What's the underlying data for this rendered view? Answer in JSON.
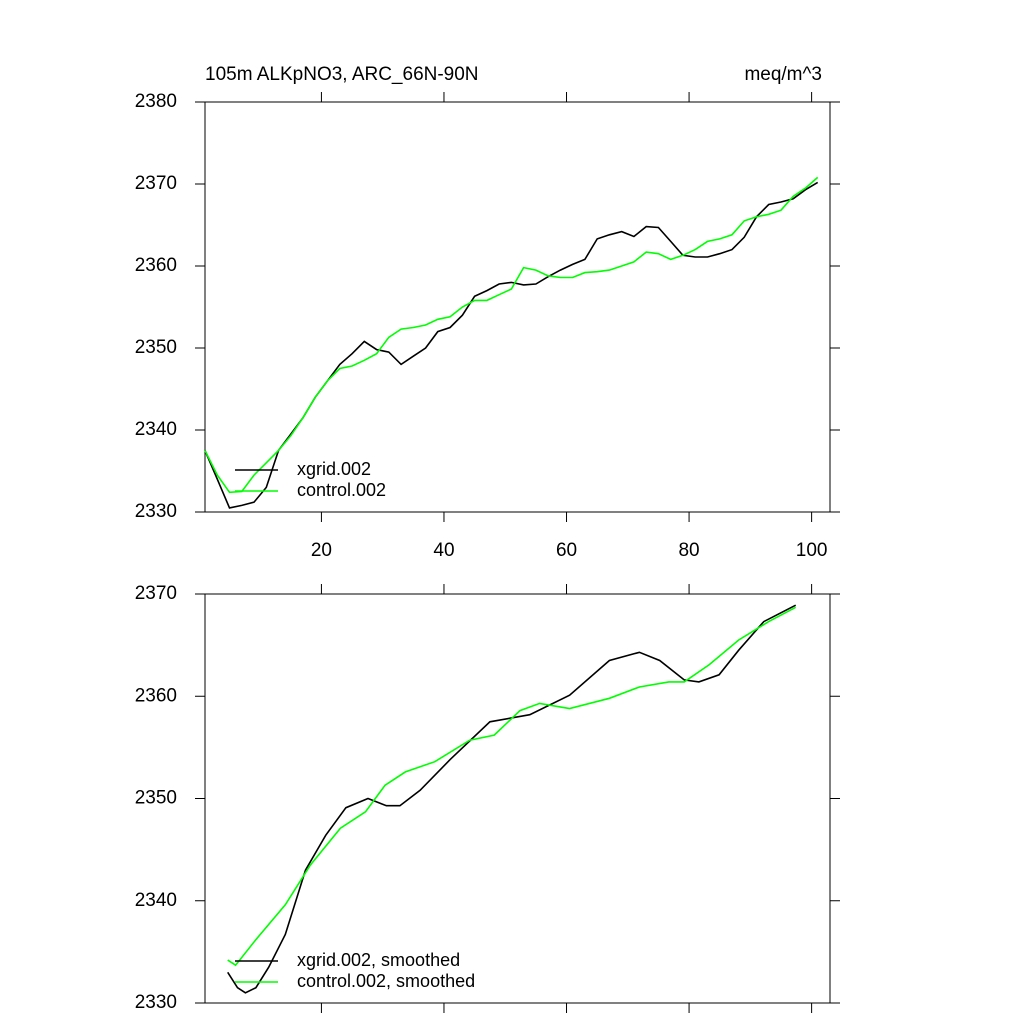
{
  "chart_data": [
    {
      "type": "line",
      "title": "105m ALKpNO3, ARC_66N-90N",
      "units": "meq/m^3",
      "xlim": [
        1,
        103
      ],
      "xticks": [
        20,
        40,
        60,
        80,
        100
      ],
      "ylim": [
        2330,
        2380
      ],
      "yticks": [
        2330,
        2340,
        2350,
        2360,
        2370,
        2380
      ],
      "legend": "lower left",
      "x": [
        1,
        3,
        5,
        7,
        9,
        11,
        13,
        15,
        17,
        19,
        21,
        23,
        25,
        27,
        29,
        31,
        33,
        35,
        37,
        39,
        41,
        43,
        45,
        47,
        49,
        51,
        53,
        55,
        57,
        59,
        61,
        63,
        65,
        67,
        69,
        71,
        73,
        75,
        77,
        79,
        81,
        83,
        85,
        87,
        89,
        91,
        93,
        95,
        97,
        99,
        101
      ],
      "series": [
        {
          "name": "xgrid.002",
          "color": "#000000",
          "values": [
            2337.5,
            2334,
            2330.5,
            2330.8,
            2331.2,
            2333,
            2337.5,
            2339.5,
            2341.5,
            2344,
            2346,
            2348,
            2349.3,
            2350.8,
            2349.8,
            2349.5,
            2348,
            2349,
            2350,
            2352,
            2352.5,
            2354,
            2356.3,
            2357,
            2357.8,
            2358,
            2357.7,
            2357.8,
            2358.7,
            2359.5,
            2360.2,
            2360.8,
            2363.3,
            2363.8,
            2364.2,
            2363.6,
            2364.8,
            2364.7,
            2363,
            2361.3,
            2361.1,
            2361.1,
            2361.5,
            2362,
            2363.5,
            2366,
            2367.5,
            2367.8,
            2368.2,
            2369.3,
            2370.2
          ]
        },
        {
          "name": "control.002",
          "color": "#00ff00",
          "values": [
            2337.5,
            2334.5,
            2332.4,
            2332.5,
            2334.5,
            2336,
            2337.5,
            2339.3,
            2341.5,
            2344,
            2346,
            2347.5,
            2347.8,
            2348.5,
            2349.3,
            2351.3,
            2352.3,
            2352.5,
            2352.8,
            2353.5,
            2353.8,
            2355,
            2355.8,
            2355.8,
            2356.5,
            2357.2,
            2359.8,
            2359.5,
            2358.8,
            2358.6,
            2358.6,
            2359.2,
            2359.3,
            2359.5,
            2360,
            2360.5,
            2361.7,
            2361.5,
            2360.8,
            2361.3,
            2362,
            2363,
            2363.3,
            2363.8,
            2365.5,
            2366,
            2366.3,
            2366.8,
            2368.5,
            2369.5,
            2370.8
          ]
        }
      ]
    },
    {
      "type": "line",
      "xlim": [
        1,
        103
      ],
      "ylim": [
        2330,
        2370
      ],
      "yticks": [
        2330,
        2340,
        2350,
        2360,
        2370
      ],
      "legend": "lower left",
      "series": [
        {
          "name": "xgrid.002, smoothed",
          "color": "#000000",
          "x": [
            4.7,
            6.3,
            7.6,
            9.3,
            11.4,
            14.1,
            17.4,
            20.7,
            24,
            27.6,
            30.6,
            32.8,
            36.1,
            41,
            47.5,
            54,
            60.5,
            67,
            71.9,
            75.2,
            79.2,
            81.6,
            84.9,
            88.1,
            92.2,
            97.4
          ],
          "values": [
            2333,
            2331.5,
            2331,
            2331.5,
            2333.5,
            2336.7,
            2343,
            2346.4,
            2349.1,
            2350,
            2349.3,
            2349.3,
            2350.8,
            2353.8,
            2357.5,
            2358.2,
            2360.1,
            2363.5,
            2364.3,
            2363.5,
            2361.6,
            2361.4,
            2362.1,
            2364.5,
            2367.3,
            2368.9
          ]
        },
        {
          "name": "control.002, smoothed",
          "color": "#00ff00",
          "x": [
            4.7,
            6,
            9.3,
            14.1,
            18.2,
            23.1,
            27.2,
            30.4,
            33.7,
            38.5,
            44.2,
            48.2,
            52.4,
            55.6,
            60.5,
            67,
            71.9,
            76.7,
            79.2,
            83.3,
            88.1,
            93,
            97.4
          ],
          "values": [
            2334.2,
            2333.7,
            2336.2,
            2339.6,
            2343.5,
            2347.1,
            2348.7,
            2351.3,
            2352.6,
            2353.6,
            2355.7,
            2356.2,
            2358.6,
            2359.3,
            2358.8,
            2359.8,
            2360.9,
            2361.4,
            2361.4,
            2363.1,
            2365.5,
            2367.3,
            2368.7
          ]
        }
      ]
    }
  ]
}
